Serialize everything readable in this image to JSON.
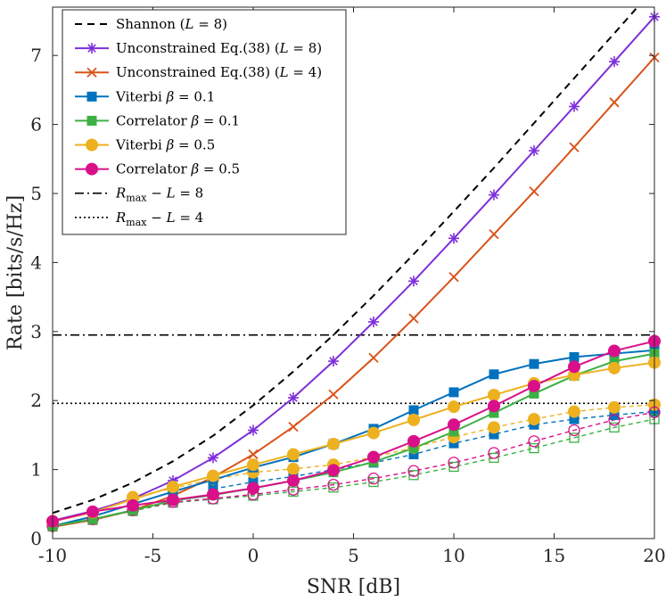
{
  "chart_data": {
    "type": "line",
    "title": "",
    "xlabel": "SNR [dB]",
    "ylabel": "Rate [bits/s/Hz]",
    "xlim": [
      -10,
      20
    ],
    "ylim": [
      0,
      7.7
    ],
    "x_ticks": [
      -10,
      -5,
      0,
      5,
      10,
      15,
      20
    ],
    "y_ticks": [
      0,
      1,
      2,
      3,
      4,
      5,
      6,
      7
    ],
    "x_tick_labels": [
      "-10",
      "-5",
      "0",
      "5",
      "10",
      "15",
      "20"
    ],
    "y_tick_labels": [
      "0",
      "1",
      "2",
      "3",
      "4",
      "5",
      "6",
      "7"
    ],
    "legend_position": "top-left",
    "series": [
      {
        "name": "Shannon (L = 8)",
        "legend": {
          "main": "Shannon (",
          "var": "L",
          "rest": " = 8)"
        },
        "color": "#000000",
        "dash": "8,6",
        "marker": "none",
        "x": [
          -10,
          -8,
          -6,
          -4,
          -2,
          0,
          2,
          4,
          6,
          8,
          10,
          12,
          14,
          16,
          18,
          20
        ],
        "values": [
          0.37,
          0.56,
          0.81,
          1.12,
          1.49,
          1.93,
          2.42,
          2.95,
          3.52,
          4.12,
          4.74,
          5.37,
          6.02,
          6.67,
          7.32,
          7.98
        ]
      },
      {
        "name": "Unconstrained Eq.(38) (L = 8)",
        "legend": {
          "main": "Unconstrained Eq.(38) (",
          "var": "L",
          "rest": " = 8)"
        },
        "color": "#7E2FDA",
        "dash": "",
        "marker": "asterisk",
        "x": [
          -10,
          -8,
          -6,
          -4,
          -2,
          0,
          2,
          4,
          6,
          8,
          10,
          12,
          14,
          16,
          18,
          20
        ],
        "values": [
          0.26,
          0.4,
          0.58,
          0.84,
          1.17,
          1.57,
          2.04,
          2.57,
          3.14,
          3.73,
          4.35,
          4.98,
          5.62,
          6.26,
          6.91,
          7.56
        ]
      },
      {
        "name": "Unconstrained Eq.(38) (L = 4)",
        "legend": {
          "main": "Unconstrained Eq.(38) (",
          "var": "L",
          "rest": " = 4)"
        },
        "color": "#D95319",
        "dash": "",
        "marker": "x",
        "x": [
          -10,
          -8,
          -6,
          -4,
          -2,
          0,
          2,
          4,
          6,
          8,
          10,
          12,
          14,
          16,
          18,
          20
        ],
        "values": [
          0.17,
          0.27,
          0.41,
          0.62,
          0.89,
          1.22,
          1.62,
          2.09,
          2.62,
          3.19,
          3.79,
          4.41,
          5.03,
          5.67,
          6.32,
          6.97
        ]
      },
      {
        "name": "Viterbi β = 0.1",
        "legend": {
          "main": "Viterbi ",
          "var": "β",
          "rest": " = 0.1"
        },
        "color": "#0072BD",
        "dash": "",
        "marker": "square-filled",
        "x": [
          -10,
          -8,
          -6,
          -4,
          -2,
          0,
          2,
          4,
          6,
          8,
          10,
          12,
          14,
          16,
          18,
          20
        ],
        "values": [
          0.18,
          0.32,
          0.5,
          0.68,
          0.85,
          1.03,
          1.18,
          1.37,
          1.59,
          1.86,
          2.12,
          2.38,
          2.53,
          2.63,
          2.68,
          2.73
        ]
      },
      {
        "name": "Correlator β = 0.1",
        "legend": {
          "main": "Correlator ",
          "var": "β",
          "rest": " = 0.1"
        },
        "color": "#3CB043",
        "dash": "",
        "marker": "square-filled",
        "x": [
          -10,
          -8,
          -6,
          -4,
          -2,
          0,
          2,
          4,
          6,
          8,
          10,
          12,
          14,
          16,
          18,
          20
        ],
        "values": [
          0.18,
          0.28,
          0.41,
          0.55,
          0.63,
          0.73,
          0.84,
          0.96,
          1.11,
          1.31,
          1.55,
          1.82,
          2.1,
          2.36,
          2.57,
          2.68
        ]
      },
      {
        "name": "Viterbi β = 0.5",
        "legend": {
          "main": "Viterbi ",
          "var": "β",
          "rest": " = 0.5"
        },
        "color": "#EDB120",
        "dash": "",
        "marker": "circle-filled",
        "x": [
          -10,
          -8,
          -6,
          -4,
          -2,
          0,
          2,
          4,
          6,
          8,
          10,
          12,
          14,
          16,
          18,
          20
        ],
        "values": [
          0.25,
          0.38,
          0.57,
          0.75,
          0.91,
          1.07,
          1.22,
          1.37,
          1.53,
          1.72,
          1.91,
          2.08,
          2.25,
          2.37,
          2.47,
          2.55
        ]
      },
      {
        "name": "Correlator β = 0.5",
        "legend": {
          "main": "Correlator ",
          "var": "β",
          "rest": " = 0.5"
        },
        "color": "#D9108A",
        "dash": "",
        "marker": "circle-filled",
        "x": [
          -10,
          -8,
          -6,
          -4,
          -2,
          0,
          2,
          4,
          6,
          8,
          10,
          12,
          14,
          16,
          18,
          20
        ],
        "values": [
          0.25,
          0.39,
          0.48,
          0.56,
          0.64,
          0.73,
          0.84,
          0.99,
          1.18,
          1.41,
          1.65,
          1.92,
          2.21,
          2.49,
          2.72,
          2.86
        ]
      },
      {
        "name": "Viterbi β = 0.1 (dashed)",
        "legend": null,
        "color": "#0072BD",
        "dash": "5,4",
        "marker": "square-filled",
        "x": [
          -2,
          0,
          2,
          4,
          6,
          8,
          10,
          12,
          14,
          16,
          18,
          20
        ],
        "values": [
          0.72,
          0.82,
          0.9,
          1.0,
          1.1,
          1.22,
          1.38,
          1.51,
          1.65,
          1.73,
          1.79,
          1.84
        ]
      },
      {
        "name": "Correlator β = 0.1 (dashed)",
        "legend": null,
        "color": "#3CB043",
        "dash": "5,4",
        "marker": "square-open",
        "x": [
          -10,
          -8,
          -6,
          -4,
          -2,
          0,
          2,
          4,
          6,
          8,
          10,
          12,
          14,
          16,
          18,
          20
        ],
        "values": [
          0.18,
          0.27,
          0.4,
          0.52,
          0.57,
          0.62,
          0.68,
          0.74,
          0.82,
          0.92,
          1.04,
          1.17,
          1.31,
          1.46,
          1.61,
          1.73
        ]
      },
      {
        "name": "Viterbi β = 0.5 (dashed)",
        "legend": null,
        "color": "#EDB120",
        "dash": "5,4",
        "marker": "circle-filled",
        "x": [
          -6,
          -4,
          -2,
          0,
          2,
          4,
          6,
          8,
          10,
          12,
          14,
          16,
          18,
          20
        ],
        "values": [
          0.6,
          0.73,
          0.86,
          0.96,
          1.01,
          1.07,
          1.18,
          1.32,
          1.47,
          1.61,
          1.73,
          1.84,
          1.9,
          1.94
        ]
      },
      {
        "name": "Correlator β = 0.5 (dashed)",
        "legend": null,
        "color": "#D9108A",
        "dash": "5,4",
        "marker": "circle-open",
        "x": [
          -10,
          -8,
          -6,
          -4,
          -2,
          0,
          2,
          4,
          6,
          8,
          10,
          12,
          14,
          16,
          18,
          20
        ],
        "values": [
          0.18,
          0.28,
          0.41,
          0.53,
          0.58,
          0.64,
          0.71,
          0.78,
          0.87,
          0.98,
          1.1,
          1.24,
          1.41,
          1.57,
          1.72,
          1.83
        ]
      }
    ],
    "hlines": [
      {
        "name": "R_max − L = 8",
        "legend": {
          "main": "R",
          "sub": "max",
          "rest": " − ",
          "var": "L",
          "rest2": " = 8"
        },
        "y": 2.95,
        "color": "#000000",
        "dash": "10,4,2,4"
      },
      {
        "name": "R_max − L = 4",
        "legend": {
          "main": "R",
          "sub": "max",
          "rest": " − ",
          "var": "L",
          "rest2": " = 4"
        },
        "y": 1.96,
        "color": "#000000",
        "dash": "2,3"
      }
    ]
  }
}
